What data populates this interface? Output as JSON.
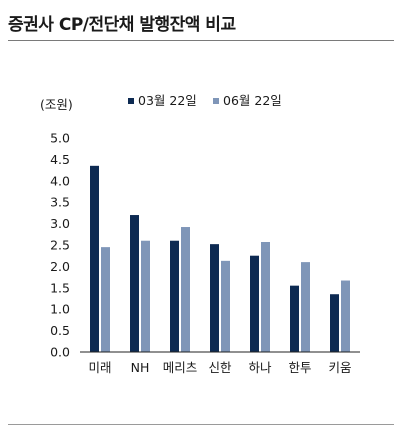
{
  "header": {
    "title": "증권사 CP/전단채 발행잔액 비교"
  },
  "chart_data": {
    "type": "bar",
    "title": "증권사 CP/전단채 발행잔액 비교",
    "ylabel": "(조원)",
    "xlabel": "",
    "ylim": [
      0,
      5.0
    ],
    "yticks": [
      "0.0",
      "0.5",
      "1.0",
      "1.5",
      "2.0",
      "2.5",
      "3.0",
      "3.5",
      "4.0",
      "4.5",
      "5.0"
    ],
    "categories": [
      "미래",
      "NH",
      "메리츠",
      "신한",
      "하나",
      "한투",
      "키움"
    ],
    "series": [
      {
        "name": "03월 22일",
        "color": "#0d2a52",
        "values": [
          4.35,
          3.2,
          2.6,
          2.52,
          2.25,
          1.55,
          1.35
        ]
      },
      {
        "name": "06월 22일",
        "color": "#7f96b8",
        "values": [
          2.45,
          2.6,
          2.92,
          2.13,
          2.57,
          2.1,
          1.67
        ]
      }
    ],
    "legend_position": "top",
    "grid": false
  }
}
